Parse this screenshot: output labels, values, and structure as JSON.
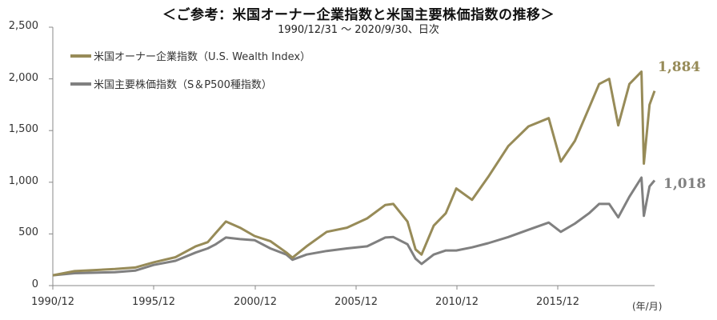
{
  "title": "＜ご参考：米国オーナー企業指数と米国主要株価指数の推移＞",
  "subtitle": "1990/12/31 ～ 2020/9/30、日次",
  "colors": {
    "owner": "#978B58",
    "sp500": "#808080",
    "axis": "#888888"
  },
  "legend": [
    {
      "label": "米国オーナー企業指数（U.S. Wealth Index）",
      "color": "#978B58"
    },
    {
      "label": "米国主要株価指数（S＆P500種指数）",
      "color": "#808080"
    }
  ],
  "end_labels": {
    "owner": "1,884",
    "sp500": "1,018"
  },
  "x_unit": "(年/月)",
  "y_ticks": [
    "0",
    "500",
    "1,000",
    "1,500",
    "2,000",
    "2,500"
  ],
  "x_ticks": [
    "1990/12",
    "1995/12",
    "2000/12",
    "2005/12",
    "2010/12",
    "2015/12"
  ],
  "chart_data": {
    "type": "line",
    "title": "＜ご参考：米国オーナー企業指数と米国主要株価指数の推移＞",
    "subtitle": "1990/12/31 ～ 2020/9/30、日次",
    "xlabel": "(年/月)",
    "ylabel": "",
    "ylim": [
      0,
      2500
    ],
    "xlim": [
      1990.92,
      2020.75
    ],
    "y_ticks": [
      0,
      500,
      1000,
      1500,
      2000,
      2500
    ],
    "x_tick_labels": [
      "1990/12",
      "1995/12",
      "2000/12",
      "2005/12",
      "2010/12",
      "2015/12"
    ],
    "grid": false,
    "legend_position": "top-left",
    "x": [
      1990.92,
      1992.0,
      1993.0,
      1994.0,
      1995.0,
      1995.92,
      1997.0,
      1998.0,
      1998.6,
      1999.0,
      1999.5,
      2000.2,
      2000.92,
      2001.7,
      2002.5,
      2002.8,
      2003.5,
      2004.5,
      2005.5,
      2006.5,
      2007.4,
      2007.8,
      2008.5,
      2008.9,
      2009.2,
      2009.8,
      2010.4,
      2010.92,
      2011.7,
      2012.5,
      2013.5,
      2014.5,
      2015.5,
      2016.1,
      2016.8,
      2017.5,
      2018.0,
      2018.5,
      2018.95,
      2019.5,
      2020.1,
      2020.22,
      2020.5,
      2020.75
    ],
    "series": [
      {
        "name": "米国オーナー企業指数（U.S. Wealth Index）",
        "values": [
          100,
          140,
          150,
          160,
          175,
          225,
          275,
          380,
          420,
          510,
          620,
          560,
          480,
          430,
          320,
          270,
          380,
          520,
          560,
          650,
          780,
          790,
          620,
          350,
          300,
          580,
          700,
          940,
          830,
          1050,
          1350,
          1540,
          1620,
          1200,
          1400,
          1720,
          1950,
          2000,
          1550,
          1950,
          2070,
          1180,
          1750,
          1884
        ]
      },
      {
        "name": "米国主要株価指数（S＆P500種指数）",
        "values": [
          100,
          120,
          125,
          130,
          145,
          200,
          240,
          320,
          360,
          400,
          465,
          450,
          440,
          360,
          300,
          250,
          300,
          335,
          360,
          380,
          465,
          470,
          400,
          260,
          210,
          300,
          340,
          340,
          370,
          410,
          470,
          540,
          610,
          520,
          600,
          700,
          790,
          790,
          660,
          860,
          1045,
          675,
          960,
          1018
        ]
      }
    ],
    "annotations": [
      {
        "series": "米国オーナー企業指数（U.S. Wealth Index）",
        "text": "1,884",
        "at": "2020/9"
      },
      {
        "series": "米国主要株価指数（S＆P500種指数）",
        "text": "1,018",
        "at": "2020/9"
      }
    ]
  }
}
